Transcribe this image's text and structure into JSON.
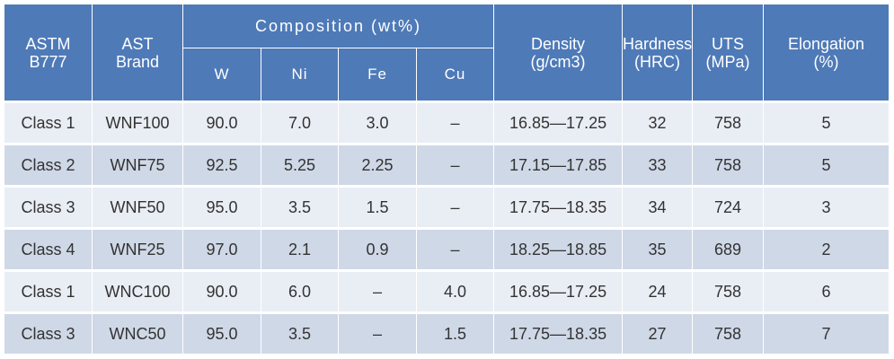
{
  "headers": {
    "astm": [
      "ASTM",
      "B777"
    ],
    "ast": [
      "AST",
      "Brand"
    ],
    "composition": "Composition (wt%)",
    "elements": [
      "W",
      "Ni",
      "Fe",
      "Cu"
    ],
    "density": [
      "Density",
      "(g/cm3)"
    ],
    "hardness": [
      "Hardness",
      "(HRC)"
    ],
    "uts": [
      "UTS",
      "(MPa)"
    ],
    "elongation": [
      "Elongation",
      "(%)"
    ]
  },
  "rows": [
    [
      "Class 1",
      "WNF100",
      "90.0",
      "7.0",
      "3.0",
      "–",
      "16.85—17.25",
      "32",
      "758",
      "5"
    ],
    [
      "Class 2",
      "WNF75",
      "92.5",
      "5.25",
      "2.25",
      "–",
      "17.15—17.85",
      "33",
      "758",
      "5"
    ],
    [
      "Class 3",
      "WNF50",
      "95.0",
      "3.5",
      "1.5",
      "–",
      "17.75—18.35",
      "34",
      "724",
      "3"
    ],
    [
      "Class 4",
      "WNF25",
      "97.0",
      "2.1",
      "0.9",
      "–",
      "18.25—18.85",
      "35",
      "689",
      "2"
    ],
    [
      "Class 1",
      "WNC100",
      "90.0",
      "6.0",
      "–",
      "4.0",
      "16.85—17.25",
      "24",
      "758",
      "6"
    ],
    [
      "Class 3",
      "WNC50",
      "95.0",
      "3.5",
      "–",
      "1.5",
      "17.75—18.35",
      "27",
      "758",
      "7"
    ]
  ],
  "colors": {
    "header_bg": "#4e7ab8",
    "row_light": "#e9edf4",
    "row_dark": "#cfd8e7"
  }
}
